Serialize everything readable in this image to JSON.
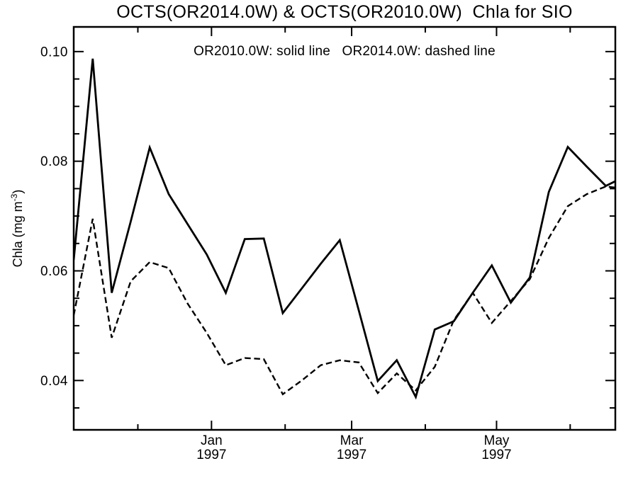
{
  "page": {
    "background_color": "#ffffff",
    "foreground_color": "#000000"
  },
  "chart_data": {
    "type": "line",
    "title": "OCTS(OR2014.0W) & OCTS(OR2010.0W)  Chla for SIO",
    "annotation": "OR2010.0W: solid line   OR2014.0W: dashed line",
    "ylabel_parts": {
      "prefix": "Chla (mg m",
      "superscript": "-3",
      "suffix": ")"
    },
    "ylabel_text": "Chla (mg m-3)",
    "x_axis": {
      "unit": "days along axis (axis starts early Nov 1996)",
      "range_days": [
        0,
        228
      ],
      "major_ticks": [
        {
          "day": 58,
          "lines": [
            "Jan",
            "1997"
          ]
        },
        {
          "day": 117,
          "lines": [
            "Mar",
            "1997"
          ]
        },
        {
          "day": 178,
          "lines": [
            "May",
            "1997"
          ]
        }
      ],
      "minor_tick_days": [
        27,
        89,
        148,
        209
      ]
    },
    "y_axis": {
      "range": [
        0.031,
        0.1045
      ],
      "major_ticks": [
        {
          "value": 0.04,
          "label": "0.04"
        },
        {
          "value": 0.06,
          "label": "0.06"
        },
        {
          "value": 0.08,
          "label": "0.08"
        },
        {
          "value": 0.1,
          "label": "0.10"
        }
      ],
      "minor_tick_values": [
        0.035,
        0.045,
        0.05,
        0.055,
        0.065,
        0.07,
        0.075,
        0.085,
        0.09,
        0.095
      ]
    },
    "sample_interval_days": 8,
    "x_days": [
      0,
      8,
      16,
      24,
      32,
      40,
      48,
      56,
      64,
      72,
      80,
      88,
      96,
      104,
      112,
      120,
      128,
      136,
      144,
      152,
      160,
      168,
      176,
      184,
      192,
      200,
      208,
      216,
      224,
      232
    ],
    "series": [
      {
        "name": "OR2010.0W",
        "legend": "OR2010.0W: solid line",
        "style": "solid",
        "values": [
          0.062,
          0.0987,
          0.056,
          0.069,
          0.0825,
          0.074,
          0.0685,
          0.063,
          0.056,
          0.0658,
          0.0659,
          0.0523,
          0.0568,
          0.0613,
          0.0656,
          0.0528,
          0.0399,
          0.0437,
          0.037,
          0.0493,
          0.0508,
          0.056,
          0.061,
          0.0542,
          0.0588,
          0.0744,
          0.0826,
          0.079,
          0.0755,
          0.0772
        ]
      },
      {
        "name": "OR2014.0W",
        "legend": "OR2014.0W: dashed line",
        "style": "dashed",
        "values": [
          0.0519,
          0.0695,
          0.0478,
          0.0581,
          0.0616,
          0.0605,
          0.054,
          0.0487,
          0.0428,
          0.0441,
          0.0439,
          0.0375,
          0.04,
          0.0428,
          0.0437,
          0.0433,
          0.0377,
          0.0413,
          0.0382,
          0.0425,
          0.051,
          0.056,
          0.0505,
          0.0545,
          0.0585,
          0.066,
          0.0718,
          0.074,
          0.0754,
          0.075
        ]
      }
    ],
    "line_color": "#000000",
    "grid": false,
    "legend_position": "top-center annotation text"
  }
}
